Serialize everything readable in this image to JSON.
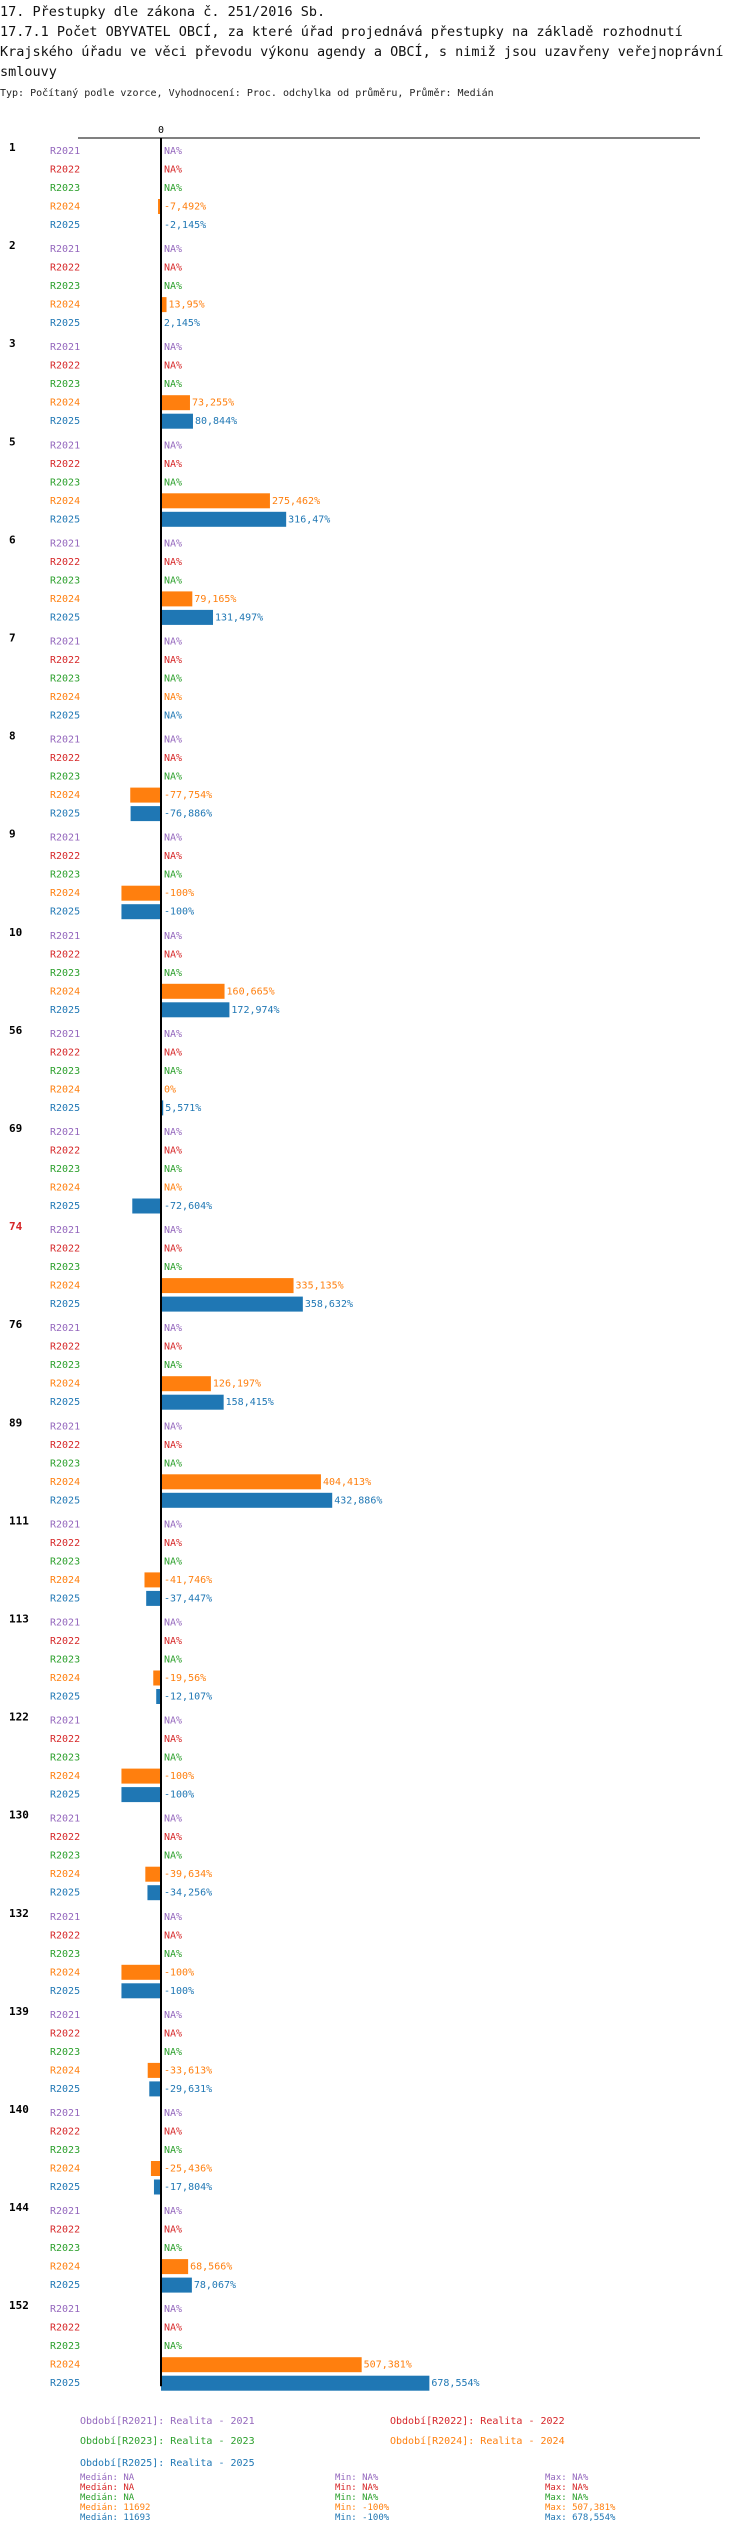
{
  "title_line1": "17. Přestupky dle zákona č. 251/2016 Sb.",
  "title_line2": "17.7.1 Počet OBYVATEL OBCÍ, za které úřad projednává přestupky na základě rozhodnutí Krajského úřadu ve věci převodu výkonu agendy a OBCÍ, s nimiž jsou uzavřeny veřejnoprávní smlouvy",
  "subtitle": "Typ: Počítaný podle vzorce, Vyhodnocení: Proc. odchylka od průměru, Průměr: Medián",
  "colors": {
    "R2021": "#9467bd",
    "R2022": "#d62728",
    "R2023": "#2ca02c",
    "R2024": "#ff7f0e",
    "R2025": "#1f77b4",
    "highlight": "#d62728"
  },
  "chart_data": {
    "type": "bar",
    "orientation": "horizontal",
    "unit": "%",
    "zero_tick": "0",
    "series_names": [
      "R2021",
      "R2022",
      "R2023",
      "R2024",
      "R2025"
    ],
    "highlighted_group": "74",
    "groups": [
      {
        "id": "1",
        "values": [
          null,
          null,
          null,
          -7.492,
          -2.145
        ],
        "labels": [
          "NA%",
          "NA%",
          "NA%",
          "-7,492%",
          "-2,145%"
        ]
      },
      {
        "id": "2",
        "values": [
          null,
          null,
          null,
          13.95,
          2.145
        ],
        "labels": [
          "NA%",
          "NA%",
          "NA%",
          "13,95%",
          "2,145%"
        ]
      },
      {
        "id": "3",
        "values": [
          null,
          null,
          null,
          73.255,
          80.844
        ],
        "labels": [
          "NA%",
          "NA%",
          "NA%",
          "73,255%",
          "80,844%"
        ]
      },
      {
        "id": "5",
        "values": [
          null,
          null,
          null,
          275.462,
          316.47
        ],
        "labels": [
          "NA%",
          "NA%",
          "NA%",
          "275,462%",
          "316,47%"
        ]
      },
      {
        "id": "6",
        "values": [
          null,
          null,
          null,
          79.165,
          131.497
        ],
        "labels": [
          "NA%",
          "NA%",
          "NA%",
          "79,165%",
          "131,497%"
        ]
      },
      {
        "id": "7",
        "values": [
          null,
          null,
          null,
          null,
          null
        ],
        "labels": [
          "NA%",
          "NA%",
          "NA%",
          "NA%",
          "NA%"
        ]
      },
      {
        "id": "8",
        "values": [
          null,
          null,
          null,
          -77.754,
          -76.886
        ],
        "labels": [
          "NA%",
          "NA%",
          "NA%",
          "-77,754%",
          "-76,886%"
        ]
      },
      {
        "id": "9",
        "values": [
          null,
          null,
          null,
          -100,
          -100
        ],
        "labels": [
          "NA%",
          "NA%",
          "NA%",
          "-100%",
          "-100%"
        ]
      },
      {
        "id": "10",
        "values": [
          null,
          null,
          null,
          160.665,
          172.974
        ],
        "labels": [
          "NA%",
          "NA%",
          "NA%",
          "160,665%",
          "172,974%"
        ]
      },
      {
        "id": "56",
        "values": [
          null,
          null,
          null,
          0,
          5.571
        ],
        "labels": [
          "NA%",
          "NA%",
          "NA%",
          "0%",
          "5,571%"
        ]
      },
      {
        "id": "69",
        "values": [
          null,
          null,
          null,
          null,
          -72.604
        ],
        "labels": [
          "NA%",
          "NA%",
          "NA%",
          "NA%",
          "-72,604%"
        ]
      },
      {
        "id": "74",
        "values": [
          null,
          null,
          null,
          335.135,
          358.632
        ],
        "labels": [
          "NA%",
          "NA%",
          "NA%",
          "335,135%",
          "358,632%"
        ]
      },
      {
        "id": "76",
        "values": [
          null,
          null,
          null,
          126.197,
          158.415
        ],
        "labels": [
          "NA%",
          "NA%",
          "NA%",
          "126,197%",
          "158,415%"
        ]
      },
      {
        "id": "89",
        "values": [
          null,
          null,
          null,
          404.413,
          432.886
        ],
        "labels": [
          "NA%",
          "NA%",
          "NA%",
          "404,413%",
          "432,886%"
        ]
      },
      {
        "id": "111",
        "values": [
          null,
          null,
          null,
          -41.746,
          -37.447
        ],
        "labels": [
          "NA%",
          "NA%",
          "NA%",
          "-41,746%",
          "-37,447%"
        ]
      },
      {
        "id": "113",
        "values": [
          null,
          null,
          null,
          -19.56,
          -12.107
        ],
        "labels": [
          "NA%",
          "NA%",
          "NA%",
          "-19,56%",
          "-12,107%"
        ]
      },
      {
        "id": "122",
        "values": [
          null,
          null,
          null,
          -100,
          -100
        ],
        "labels": [
          "NA%",
          "NA%",
          "NA%",
          "-100%",
          "-100%"
        ]
      },
      {
        "id": "130",
        "values": [
          null,
          null,
          null,
          -39.634,
          -34.256
        ],
        "labels": [
          "NA%",
          "NA%",
          "NA%",
          "-39,634%",
          "-34,256%"
        ]
      },
      {
        "id": "132",
        "values": [
          null,
          null,
          null,
          -100,
          -100
        ],
        "labels": [
          "NA%",
          "NA%",
          "NA%",
          "-100%",
          "-100%"
        ]
      },
      {
        "id": "139",
        "values": [
          null,
          null,
          null,
          -33.613,
          -29.631
        ],
        "labels": [
          "NA%",
          "NA%",
          "NA%",
          "-33,613%",
          "-29,631%"
        ]
      },
      {
        "id": "140",
        "values": [
          null,
          null,
          null,
          -25.436,
          -17.804
        ],
        "labels": [
          "NA%",
          "NA%",
          "NA%",
          "-25,436%",
          "-17,804%"
        ]
      },
      {
        "id": "144",
        "values": [
          null,
          null,
          null,
          68.566,
          78.067
        ],
        "labels": [
          "NA%",
          "NA%",
          "NA%",
          "68,566%",
          "78,067%"
        ]
      },
      {
        "id": "152",
        "values": [
          null,
          null,
          null,
          507.381,
          678.554
        ],
        "labels": [
          "NA%",
          "NA%",
          "NA%",
          "507,381%",
          "678,554%"
        ]
      }
    ],
    "legend": [
      {
        "series": "R2021",
        "text": "Období[R2021]: Realita - 2021"
      },
      {
        "series": "R2022",
        "text": "Období[R2022]: Realita - 2022"
      },
      {
        "series": "R2023",
        "text": "Období[R2023]: Realita - 2023"
      },
      {
        "series": "R2024",
        "text": "Období[R2024]: Realita - 2024"
      },
      {
        "series": "R2025",
        "text": "Období[R2025]: Realita - 2025"
      }
    ],
    "stats": [
      {
        "series": "R2021",
        "median": "Medián: NA",
        "min": "Min: NA%",
        "max": "Max: NA%"
      },
      {
        "series": "R2022",
        "median": "Medián: NA",
        "min": "Min: NA%",
        "max": "Max: NA%"
      },
      {
        "series": "R2023",
        "median": "Medián: NA",
        "min": "Min: NA%",
        "max": "Max: NA%"
      },
      {
        "series": "R2024",
        "median": "Medián: 11692",
        "min": "Min: -100%",
        "max": "Max: 507,381%"
      },
      {
        "series": "R2025",
        "median": "Medián: 11693",
        "min": "Min: -100%",
        "max": "Max: 678,554%"
      }
    ]
  }
}
